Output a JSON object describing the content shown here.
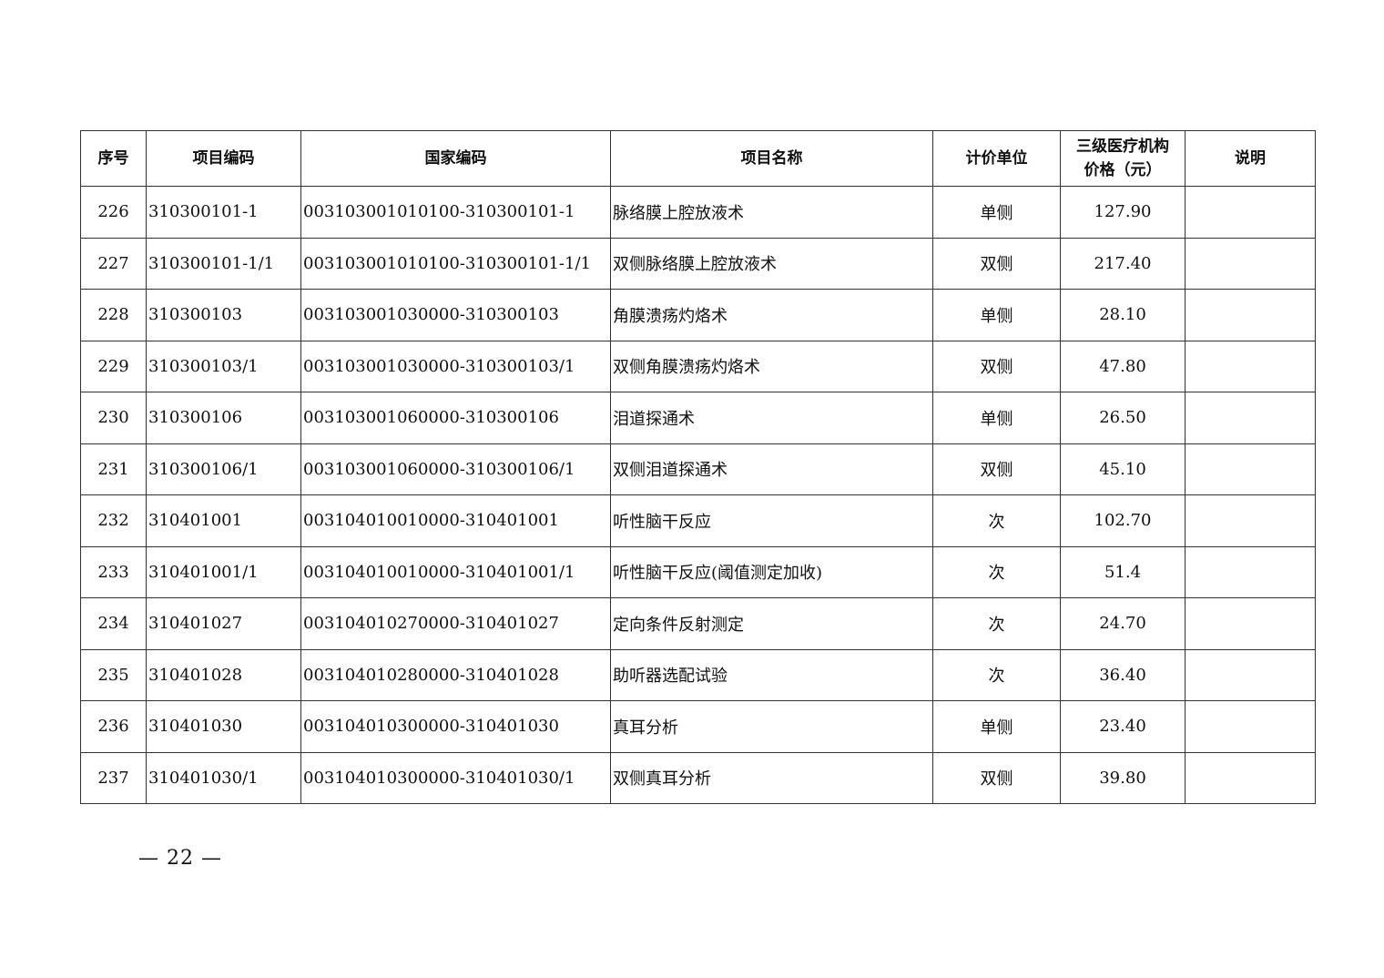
{
  "table": {
    "headers": [
      "序号",
      "项目编码",
      "国家编码",
      "项目名称",
      "计价单位",
      "三级医疗机构价格（元）",
      "说明"
    ],
    "header_price_line1": "三级医疗机构",
    "header_price_line2": "价格（元）",
    "rows": [
      [
        "226",
        "310300101-1",
        "003103001010100-310300101-1",
        "脉络膜上腔放液术",
        "单侧",
        "127.90",
        ""
      ],
      [
        "227",
        "310300101-1/1",
        "003103001010100-310300101-1/1",
        "双侧脉络膜上腔放液术",
        "双侧",
        "217.40",
        ""
      ],
      [
        "228",
        "310300103",
        "003103001030000-310300103",
        "角膜溃疡灼烙术",
        "单侧",
        "28.10",
        ""
      ],
      [
        "229",
        "310300103/1",
        "003103001030000-310300103/1",
        "双侧角膜溃疡灼烙术",
        "双侧",
        "47.80",
        ""
      ],
      [
        "230",
        "310300106",
        "003103001060000-310300106",
        "泪道探通术",
        "单侧",
        "26.50",
        ""
      ],
      [
        "231",
        "310300106/1",
        "003103001060000-310300106/1",
        "双侧泪道探通术",
        "双侧",
        "45.10",
        ""
      ],
      [
        "232",
        "310401001",
        "003104010010000-310401001",
        "听性脑干反应",
        "次",
        "102.70",
        ""
      ],
      [
        "233",
        "310401001/1",
        "003104010010000-310401001/1",
        "听性脑干反应(阈值测定加收)",
        "次",
        "51.4",
        ""
      ],
      [
        "234",
        "310401027",
        "003104010270000-310401027",
        "定向条件反射测定",
        "次",
        "24.70",
        ""
      ],
      [
        "235",
        "310401028",
        "003104010280000-310401028",
        "助听器选配试验",
        "次",
        "36.40",
        ""
      ],
      [
        "236",
        "310401030",
        "003104010300000-310401030",
        "真耳分析",
        "单侧",
        "23.40",
        ""
      ],
      [
        "237",
        "310401030/1",
        "003104010300000-310401030/1",
        "双侧真耳分析",
        "双侧",
        "39.80",
        ""
      ]
    ]
  },
  "footer": {
    "page_number": "— 22 —"
  }
}
